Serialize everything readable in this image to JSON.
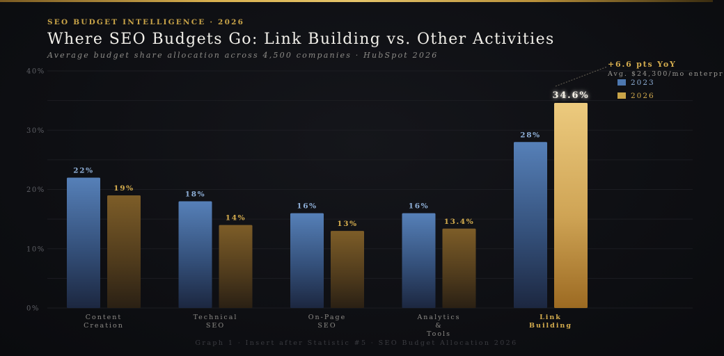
{
  "header": {
    "eyebrow": "SEO BUDGET INTELLIGENCE · 2026",
    "title": "Where SEO Budgets Go: Link Building vs. Other Activities",
    "subtitle": "Average budget share allocation across 4,500 companies · HubSpot 2026"
  },
  "annotation": {
    "headline": "+6.6 pts YoY",
    "detail": "Avg. $24,300/mo enterpr"
  },
  "footer": {
    "caption": "Graph 1 · Insert after Statistic #5 · SEO Budget Allocation 2026"
  },
  "colors": {
    "series_2023": "#4d78b0",
    "series_2026": "#c9a448",
    "highlight": "#e6c06a",
    "label_2023": "#8fb0d8",
    "label_2026": "#d4ac4e"
  },
  "chart_data": {
    "type": "bar",
    "categories": [
      [
        "Content",
        "Creation"
      ],
      [
        "Technical",
        "SEO"
      ],
      [
        "On-Page",
        "SEO"
      ],
      [
        "Analytics",
        "&",
        "Tools"
      ],
      [
        "Link",
        "Building"
      ]
    ],
    "highlight_category_index": 4,
    "series": [
      {
        "name": "2023",
        "values": [
          22,
          18,
          16,
          16,
          28
        ],
        "labels": [
          "22%",
          "18%",
          "16%",
          "16%",
          "28%"
        ]
      },
      {
        "name": "2026",
        "values": [
          19,
          14,
          13,
          13.4,
          34.6
        ],
        "labels": [
          "19%",
          "14%",
          "13%",
          "13.4%",
          "34.6%"
        ]
      }
    ],
    "ylim": [
      0,
      40
    ],
    "yticks": [
      0,
      10,
      20,
      30,
      40
    ],
    "ytick_labels": [
      "0%",
      "10%",
      "20%",
      "30%",
      "40%"
    ],
    "grid": true,
    "legend_position": "top-right"
  }
}
